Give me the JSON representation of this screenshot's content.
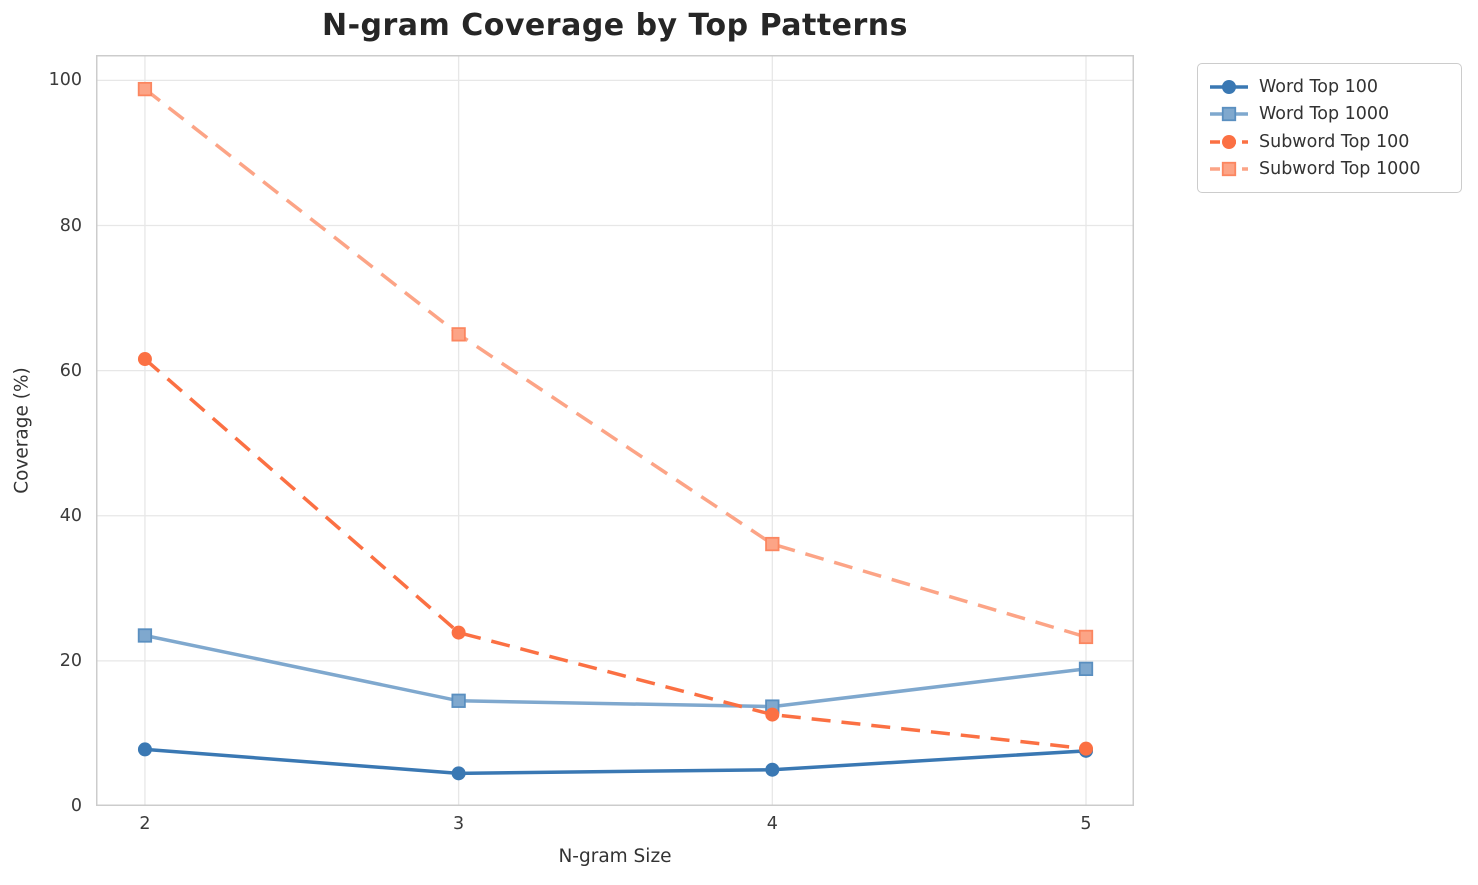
{
  "chart_data": {
    "type": "line",
    "title": "N-gram Coverage by Top Patterns",
    "xlabel": "N-gram Size",
    "ylabel": "Coverage (%)",
    "x": [
      2,
      3,
      4,
      5
    ],
    "xticks": [
      "2",
      "3",
      "4",
      "5"
    ],
    "yticks": [
      "0",
      "20",
      "40",
      "60",
      "80",
      "100"
    ],
    "ytick_values": [
      0,
      20,
      40,
      60,
      80,
      100
    ],
    "xlim": [
      1.844,
      5.153
    ],
    "ylim": [
      0,
      103.5
    ],
    "grid": true,
    "legend_position": "outside-right",
    "series": [
      {
        "name": "Word Top 100",
        "marker": "circle",
        "dash": "solid",
        "color": "#3a78b3",
        "edge_color": "#3a78b3",
        "values": [
          7.8,
          4.5,
          5.0,
          7.6
        ]
      },
      {
        "name": "Word Top 1000",
        "marker": "square",
        "dash": "solid",
        "color": "#7fa8ce",
        "edge_color": "#5a8fc0",
        "values": [
          23.5,
          14.5,
          13.7,
          18.9
        ]
      },
      {
        "name": "Subword Top 100",
        "marker": "circle",
        "dash": "dashed",
        "color": "#fb7043",
        "edge_color": "#fb7043",
        "values": [
          61.6,
          23.9,
          12.6,
          7.9
        ]
      },
      {
        "name": "Subword Top 1000",
        "marker": "square",
        "dash": "dashed",
        "color": "#fca486",
        "edge_color": "#fb8660",
        "values": [
          98.8,
          65.0,
          36.1,
          23.3
        ]
      }
    ]
  },
  "colors": {
    "background": "#ffffff",
    "grid": "#e7e7e7",
    "spine": "#cccccc",
    "title_text": "#262626",
    "tick_text": "#3b3b3b"
  }
}
